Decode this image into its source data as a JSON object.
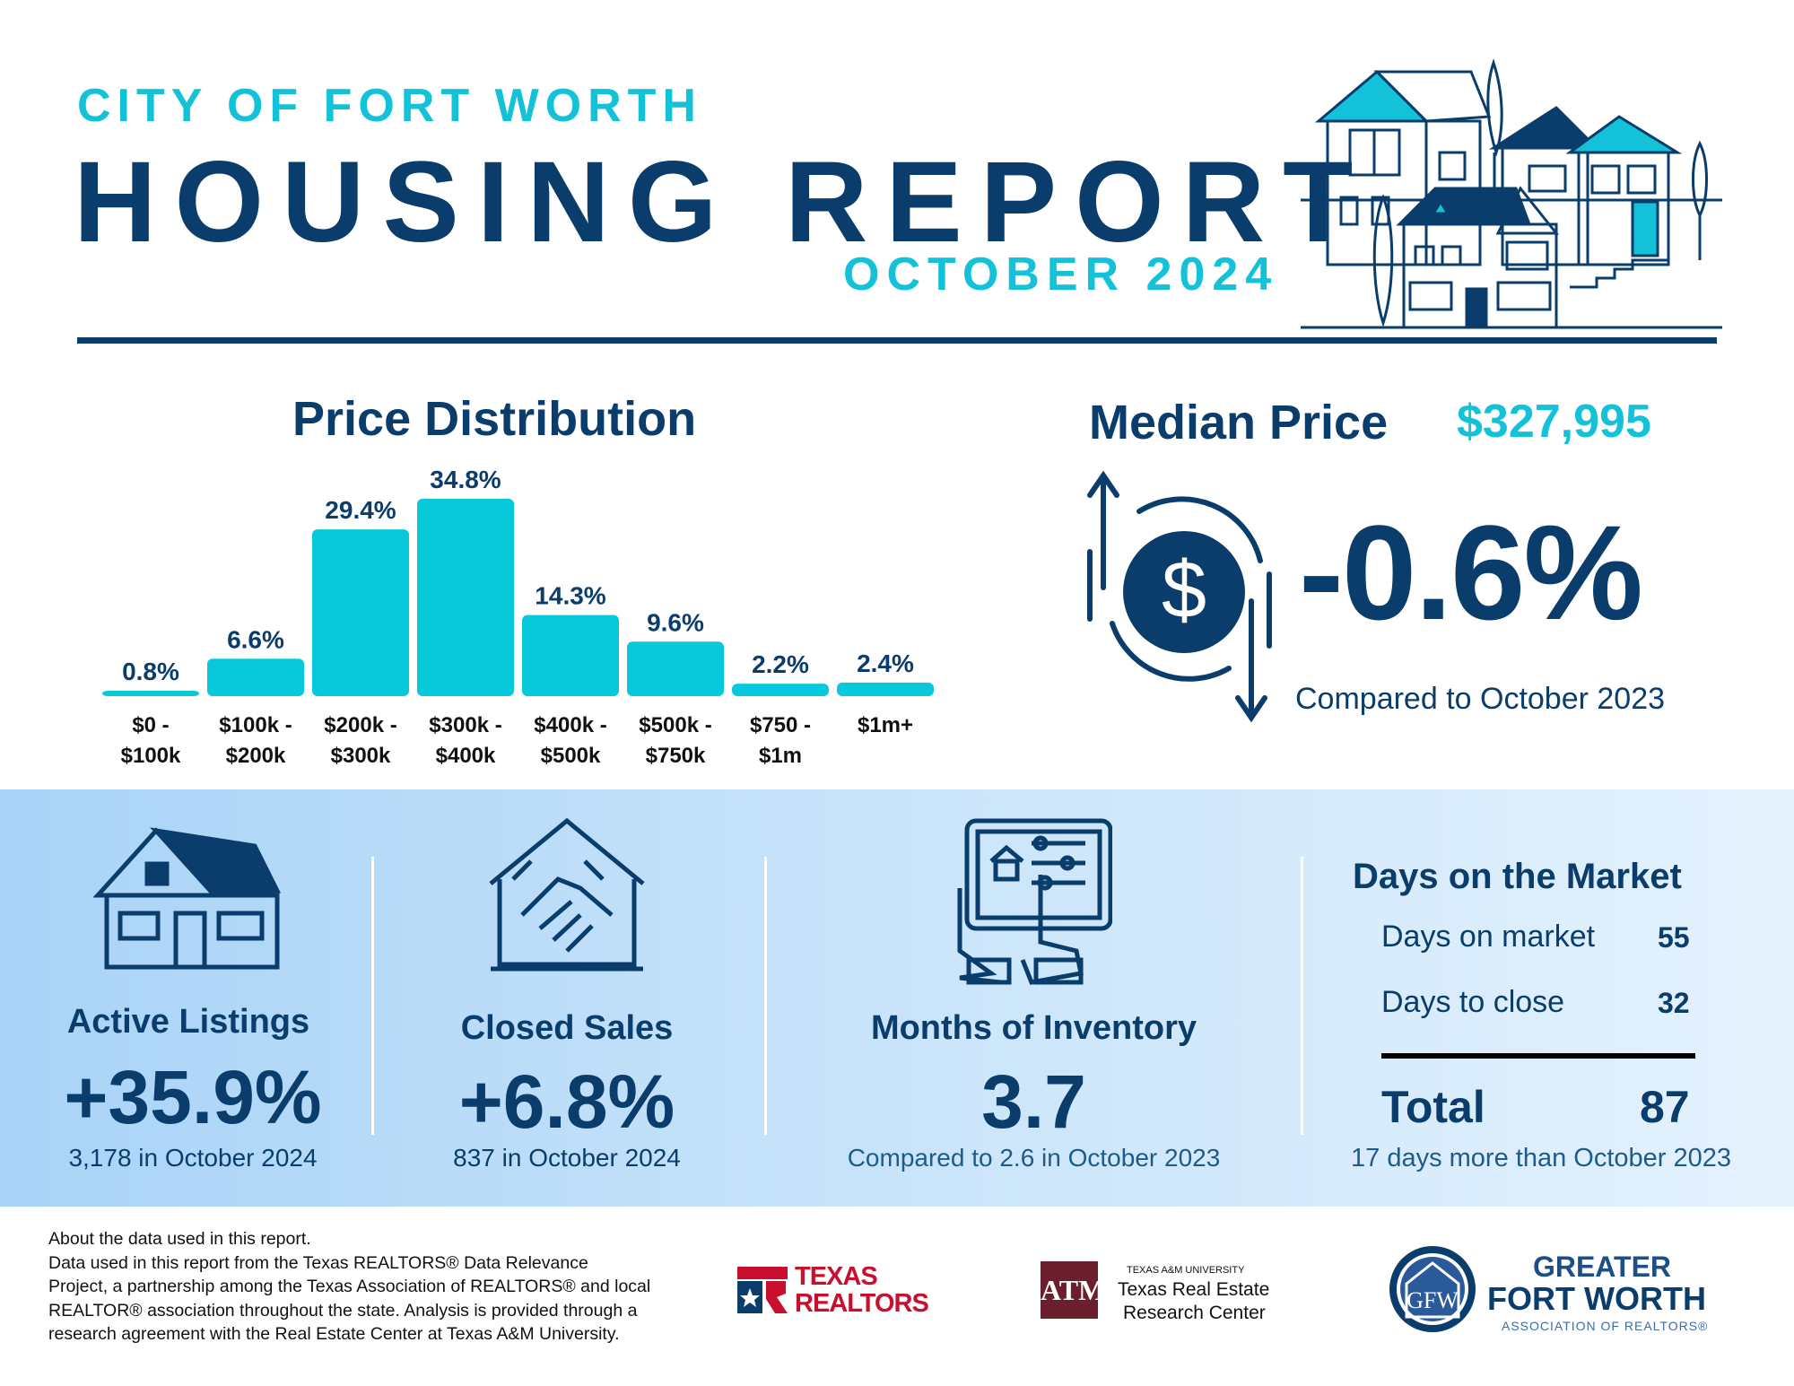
{
  "header": {
    "city": "CITY OF FORT WORTH",
    "title": "HOUSING REPORT",
    "month": "OCTOBER 2024"
  },
  "price_distribution": {
    "title": "Price Distribution"
  },
  "chart_data": {
    "type": "bar",
    "title": "Price Distribution",
    "categories": [
      [
        "$0 -",
        "$100k"
      ],
      [
        "$100k -",
        "$200k"
      ],
      [
        "$200k -",
        "$300k"
      ],
      [
        "$300k -",
        "$400k"
      ],
      [
        "$400k -",
        "$500k"
      ],
      [
        "$500k -",
        "$750k"
      ],
      [
        "$750 -",
        "$1m"
      ],
      [
        "$1m+"
      ]
    ],
    "values": [
      0.8,
      6.6,
      29.4,
      34.8,
      14.3,
      9.6,
      2.2,
      2.4
    ],
    "value_labels": [
      "0.8%",
      "6.6%",
      "29.4%",
      "34.8%",
      "14.3%",
      "9.6%",
      "2.2%",
      "2.4%"
    ],
    "bar_color": "#08c8dc",
    "label_color": "#0a3d6b",
    "grid": false
  },
  "median_price": {
    "title": "Median Price",
    "value": "$327,995",
    "change": "-0.6%",
    "compare": "Compared to October 2023"
  },
  "stats": {
    "active_listings": {
      "label": "Active Listings",
      "value": "+35.9%",
      "sub": "3,178 in October 2024"
    },
    "closed_sales": {
      "label": "Closed Sales",
      "value": "+6.8%",
      "sub": "837 in October 2024"
    },
    "months_inventory": {
      "label": "Months of Inventory",
      "value": "3.7",
      "sub": "Compared to 2.6 in October 2023"
    }
  },
  "days_on_market": {
    "title": "Days on the Market",
    "rows": [
      {
        "label": "Days on market",
        "value": "55"
      },
      {
        "label": "Days to close",
        "value": "32"
      }
    ],
    "total_label": "Total",
    "total_value": "87",
    "note": "17 days more than October 2023"
  },
  "footer": {
    "about_title": "About the data used in this report.",
    "about_lines": [
      "Data used in this report from the Texas REALTORS® Data Relevance",
      "Project, a partnership among the Texas Association of REALTORS® and local",
      "REALTOR® association throughout the state. Analysis is provided through a",
      "research agreement with the Real Estate Center at Texas A&M University."
    ],
    "logo_texas_realtors": [
      "TEXAS",
      "REALTORS"
    ],
    "logo_tamu": {
      "small": "TEXAS A&M UNIVERSITY",
      "line1": "Texas Real Estate",
      "line2": "Research Center"
    },
    "logo_gfw": {
      "line1": "GREATER",
      "line2": "FORT WORTH",
      "line3": "ASSOCIATION OF REALTORS®"
    }
  },
  "colors": {
    "navy": "#0a3d6b",
    "cyan": "#13c2d9"
  },
  "icons": [
    "houses-illustration-icon",
    "dollar-circle-arrows-icon",
    "house-icon",
    "handshake-house-icon",
    "tablet-touch-icon",
    "texas-realtors-logo",
    "tamu-logo",
    "gfw-logo"
  ]
}
